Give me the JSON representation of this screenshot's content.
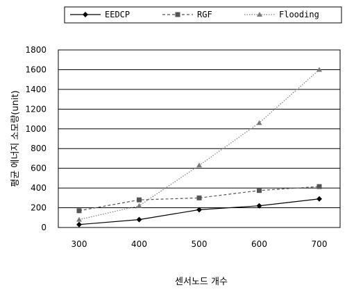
{
  "chart_data": {
    "type": "line",
    "title": "",
    "xlabel": "센서노드 개수",
    "ylabel": "평균 에너지 소모량(unit)",
    "categories": [
      "300",
      "400",
      "500",
      "600",
      "700"
    ],
    "ylim": [
      0,
      1800
    ],
    "yticks": [
      "0",
      "200",
      "400",
      "600",
      "800",
      "1000",
      "1200",
      "1400",
      "1600",
      "1800"
    ],
    "grid": true,
    "legend_position": "top",
    "series": [
      {
        "name": "EEDCP",
        "values": [
          30,
          80,
          180,
          220,
          290
        ],
        "color": "#000000",
        "marker": "diamond",
        "line": "solid"
      },
      {
        "name": "RGF",
        "values": [
          170,
          280,
          300,
          375,
          415
        ],
        "color": "#555555",
        "marker": "square",
        "line": "dashed"
      },
      {
        "name": "Flooding",
        "values": [
          80,
          220,
          630,
          1060,
          1600
        ],
        "color": "#7a7a7a",
        "marker": "triangle",
        "line": "dotted"
      }
    ]
  }
}
